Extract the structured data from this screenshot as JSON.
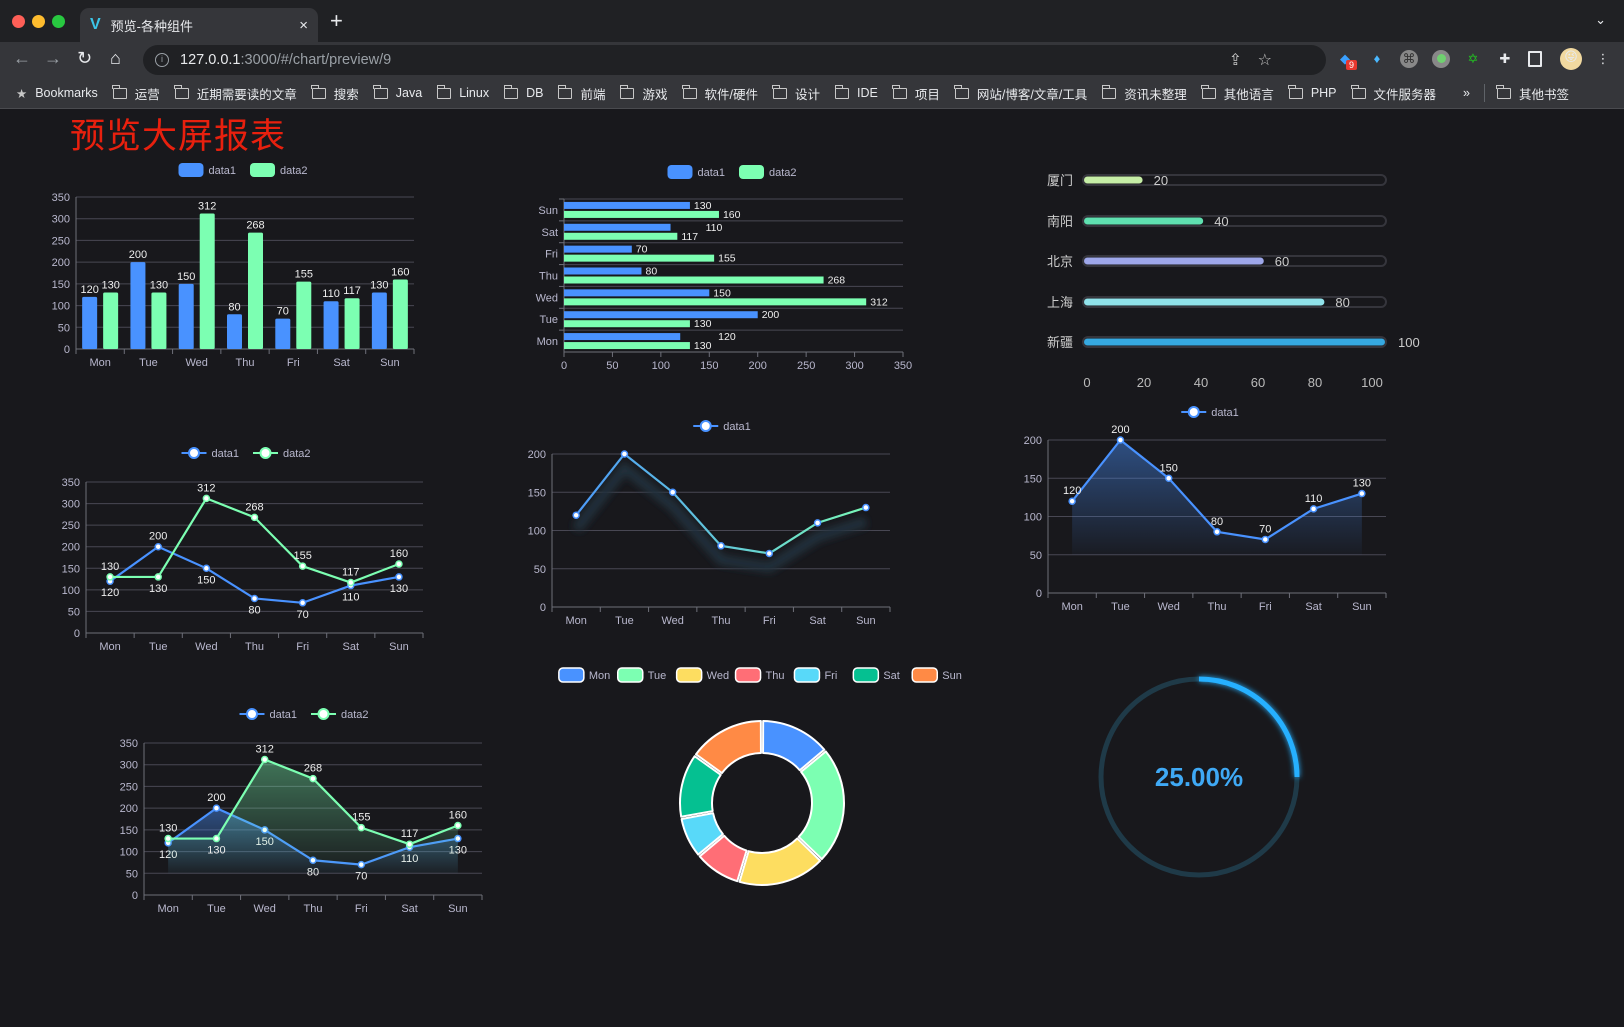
{
  "browser": {
    "tab_title": "预览-各种组件",
    "tab_close": "×",
    "new_tab": "+",
    "tab_menu": "⌄",
    "url_host": "127.0.0.1",
    "url_path": ":3000/#/chart/preview/9",
    "extension_badge": "9",
    "bookmarks": [
      "Bookmarks",
      "运营",
      "近期需要读的文章",
      "搜索",
      "Java",
      "Linux",
      "DB",
      "前端",
      "游戏",
      "软件/硬件",
      "设计",
      "IDE",
      "项目",
      "网站/博客/文章/工具",
      "资讯未整理",
      "其他语言",
      "PHP",
      "文件服务器"
    ],
    "bookmarks_more": "»",
    "other_bookmarks": "其他书签"
  },
  "page": {
    "title": "预览大屏报表",
    "title_color": "#e8200e",
    "background": "#18181c"
  },
  "colors": {
    "blue": "#4992ff",
    "green": "#7cffb2",
    "yellow": "#fddd60",
    "red": "#ff6e76",
    "cyan": "#58d9f9",
    "teal": "#05c091",
    "orange": "#ff8a45"
  },
  "chart_data": [
    {
      "type": "bar",
      "categories": [
        "Mon",
        "Tue",
        "Wed",
        "Thu",
        "Fri",
        "Sat",
        "Sun"
      ],
      "series": [
        {
          "name": "data1",
          "values": [
            120,
            200,
            150,
            80,
            70,
            110,
            130
          ]
        },
        {
          "name": "data2",
          "values": [
            130,
            130,
            312,
            268,
            155,
            117,
            160
          ]
        }
      ],
      "ylim": [
        0,
        350
      ],
      "yticks": [
        0,
        50,
        100,
        150,
        200,
        250,
        300,
        350
      ],
      "legend": "top-center",
      "grid": true,
      "data_labels": true
    },
    {
      "type": "bar",
      "orientation": "horizontal",
      "categories": [
        "Mon",
        "Tue",
        "Wed",
        "Thu",
        "Fri",
        "Sat",
        "Sun"
      ],
      "series": [
        {
          "name": "data1",
          "values": [
            120,
            200,
            150,
            80,
            70,
            110,
            130
          ]
        },
        {
          "name": "data2",
          "values": [
            130,
            130,
            312,
            268,
            155,
            117,
            160
          ]
        }
      ],
      "xlim": [
        0,
        350
      ],
      "xticks": [
        0,
        50,
        100,
        150,
        200,
        250,
        300,
        350
      ],
      "legend": "top-center",
      "grid": true,
      "data_labels": true
    },
    {
      "type": "bar",
      "orientation": "horizontal",
      "categories": [
        "厦门",
        "南阳",
        "北京",
        "上海",
        "新疆"
      ],
      "values": [
        20,
        40,
        60,
        80,
        100
      ],
      "xlim": [
        0,
        100
      ],
      "xticks": [
        0,
        20,
        40,
        60,
        80,
        100
      ],
      "colors": [
        "#c6eea6",
        "#5fe0b0",
        "#9ea7ea",
        "#90e2ea",
        "#36a9e1"
      ]
    },
    {
      "type": "line",
      "categories": [
        "Mon",
        "Tue",
        "Wed",
        "Thu",
        "Fri",
        "Sat",
        "Sun"
      ],
      "series": [
        {
          "name": "data1",
          "values": [
            120,
            200,
            150,
            80,
            70,
            110,
            130
          ]
        },
        {
          "name": "data2",
          "values": [
            130,
            130,
            312,
            268,
            155,
            117,
            160
          ]
        }
      ],
      "ylim": [
        0,
        350
      ],
      "yticks": [
        0,
        50,
        100,
        150,
        200,
        250,
        300,
        350
      ],
      "legend": "top-center",
      "grid": true,
      "data_labels": true
    },
    {
      "type": "line",
      "categories": [
        "Mon",
        "Tue",
        "Wed",
        "Thu",
        "Fri",
        "Sat",
        "Sun"
      ],
      "series": [
        {
          "name": "data1",
          "values": [
            120,
            200,
            150,
            80,
            70,
            110,
            130
          ]
        }
      ],
      "ylim": [
        0,
        200
      ],
      "yticks": [
        0,
        50,
        100,
        150,
        200
      ],
      "legend": "top-center",
      "grid": true,
      "gradient": [
        "#4992ff",
        "#7cffb2"
      ]
    },
    {
      "type": "area",
      "categories": [
        "Mon",
        "Tue",
        "Wed",
        "Thu",
        "Fri",
        "Sat",
        "Sun"
      ],
      "series": [
        {
          "name": "data1",
          "values": [
            120,
            200,
            150,
            80,
            70,
            110,
            130
          ]
        }
      ],
      "ylim": [
        0,
        200
      ],
      "yticks": [
        0,
        50,
        100,
        150,
        200
      ],
      "legend": "top-center",
      "grid": true,
      "data_labels": true
    },
    {
      "type": "area",
      "categories": [
        "Mon",
        "Tue",
        "Wed",
        "Thu",
        "Fri",
        "Sat",
        "Sun"
      ],
      "series": [
        {
          "name": "data1",
          "values": [
            120,
            200,
            150,
            80,
            70,
            110,
            130
          ]
        },
        {
          "name": "data2",
          "values": [
            130,
            130,
            312,
            268,
            155,
            117,
            160
          ]
        }
      ],
      "ylim": [
        0,
        350
      ],
      "yticks": [
        0,
        50,
        100,
        150,
        200,
        250,
        300,
        350
      ],
      "legend": "top-center",
      "grid": true,
      "data_labels": true
    },
    {
      "type": "pie",
      "donut": true,
      "categories": [
        "Mon",
        "Tue",
        "Wed",
        "Thu",
        "Fri",
        "Sat",
        "Sun"
      ],
      "values": [
        120,
        200,
        150,
        80,
        70,
        110,
        130
      ],
      "colors": [
        "#4992ff",
        "#7cffb2",
        "#fddd60",
        "#ff6e76",
        "#58d9f9",
        "#05c091",
        "#ff8a45"
      ],
      "legend": "top-center"
    },
    {
      "type": "gauge",
      "value": 0.25,
      "label": "25.00%",
      "color": "#26b0ff",
      "track_color": "#1f3a48"
    }
  ]
}
